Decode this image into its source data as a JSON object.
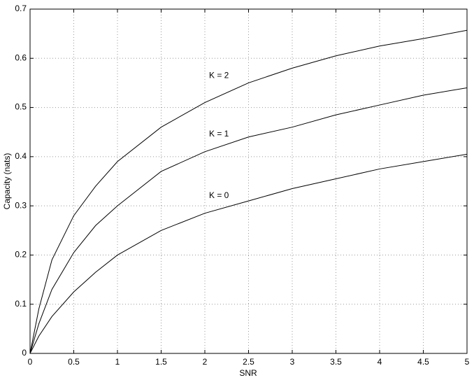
{
  "chart_data": {
    "type": "line",
    "x_label": "SNR",
    "y_label": "Capacity (nats)",
    "x": [
      0,
      0.1,
      0.25,
      0.5,
      0.75,
      1,
      1.5,
      2,
      2.5,
      3,
      3.5,
      4,
      4.5,
      5
    ],
    "series": [
      {
        "name": "K = 2",
        "color": "#000000",
        "values": [
          0,
          0.09,
          0.19,
          0.28,
          0.34,
          0.39,
          0.46,
          0.51,
          0.55,
          0.58,
          0.605,
          0.625,
          0.64,
          0.657
        ]
      },
      {
        "name": "K = 1",
        "color": "#000000",
        "values": [
          0,
          0.06,
          0.13,
          0.205,
          0.26,
          0.3,
          0.37,
          0.41,
          0.44,
          0.46,
          0.485,
          0.505,
          0.525,
          0.54
        ]
      },
      {
        "name": "K = 0",
        "color": "#000000",
        "values": [
          0,
          0.035,
          0.075,
          0.125,
          0.165,
          0.2,
          0.25,
          0.285,
          0.31,
          0.335,
          0.355,
          0.375,
          0.39,
          0.405
        ]
      }
    ],
    "xlim": [
      0,
      5
    ],
    "xticks": [
      0,
      0.5,
      1,
      1.5,
      2,
      2.5,
      3,
      3.5,
      4,
      4.5,
      5
    ],
    "ylim": [
      0,
      0.7
    ],
    "yticks": [
      0,
      0.1,
      0.2,
      0.3,
      0.4,
      0.5,
      0.6,
      0.7
    ],
    "grid": true
  }
}
